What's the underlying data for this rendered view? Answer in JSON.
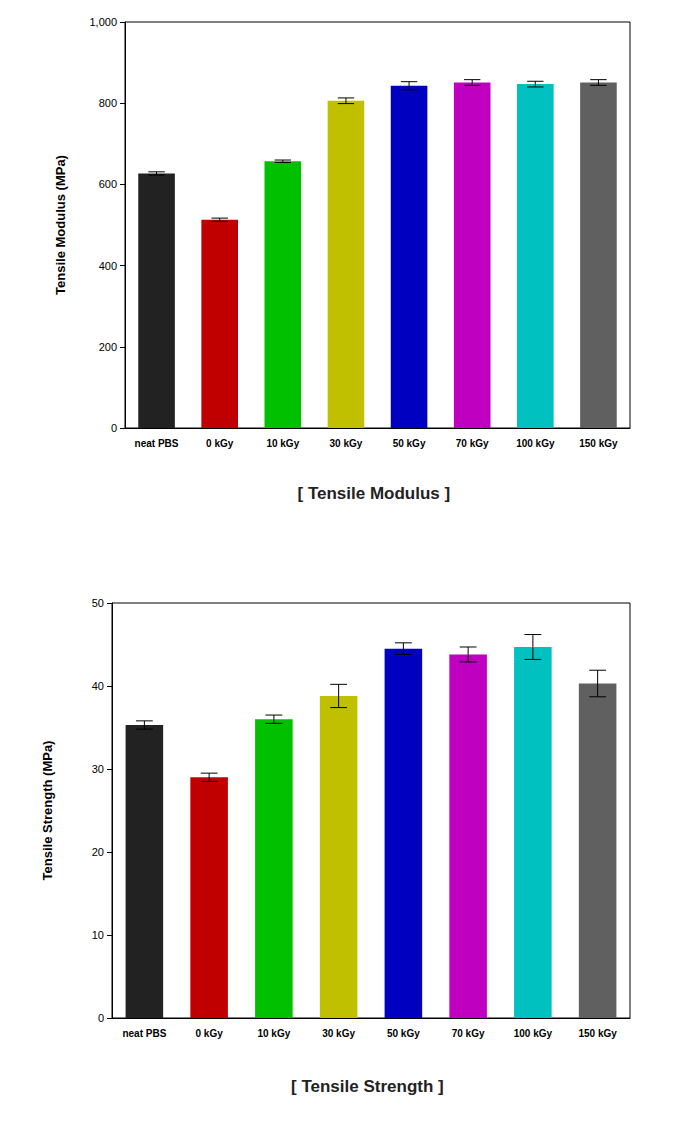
{
  "chart_data": [
    {
      "type": "bar",
      "title": "[ Tensile Modulus ]",
      "ylabel": "Tensile Modulus (MPa)",
      "categories": [
        "neat PBS",
        "0 kGy",
        "10 kGy",
        "30 kGy",
        "50 kGy",
        "70 kGy",
        "100 kGy",
        "150 kGy"
      ],
      "values": [
        627,
        513,
        657,
        806,
        843,
        851,
        847,
        851
      ],
      "errors": [
        4,
        4,
        3,
        7,
        10,
        7,
        7,
        7
      ],
      "colors": [
        "#222222",
        "#c00000",
        "#00c000",
        "#c0c000",
        "#0000c0",
        "#c000c0",
        "#00c0c0",
        "#606060"
      ],
      "ylim": [
        0,
        1000
      ],
      "yticks": [
        0,
        200,
        400,
        600,
        800,
        1000
      ],
      "grid": false
    },
    {
      "type": "bar",
      "title": "[ Tensile Strength ]",
      "ylabel": "Tensile Strength (MPa)",
      "categories": [
        "neat PBS",
        "0 kGy",
        "10 kGy",
        "30 kGy",
        "50 kGy",
        "70 kGy",
        "100 kGy",
        "150 kGy"
      ],
      "values": [
        35.3,
        29.0,
        36.0,
        38.8,
        44.5,
        43.8,
        44.7,
        40.3
      ],
      "errors": [
        0.5,
        0.5,
        0.5,
        1.4,
        0.7,
        0.9,
        1.5,
        1.6
      ],
      "colors": [
        "#222222",
        "#c00000",
        "#00c000",
        "#c0c000",
        "#0000c0",
        "#c000c0",
        "#00c0c0",
        "#606060"
      ],
      "ylim": [
        0,
        50
      ],
      "yticks": [
        0,
        10,
        20,
        30,
        40,
        50
      ],
      "grid": false
    }
  ]
}
